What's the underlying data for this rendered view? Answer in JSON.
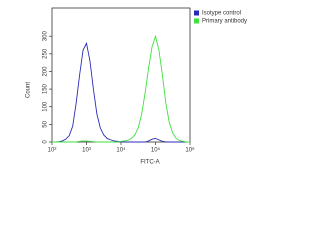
{
  "chart_data": {
    "type": "line",
    "x_label": "FITC-A",
    "y_label": "Count",
    "x": [
      100,
      126,
      158,
      200,
      251,
      316,
      398,
      501,
      631,
      794,
      1000,
      1259,
      1585,
      1995,
      2512,
      3162,
      3981,
      5012,
      6310,
      7943,
      10000,
      12589,
      15849,
      19953,
      25119,
      31623,
      39811,
      50119,
      63096,
      79433,
      100000,
      125893,
      158489,
      199526,
      251189,
      316228,
      398107,
      501187,
      630957,
      794328,
      1000000
    ],
    "series": [
      {
        "name": "Isotype control",
        "color": "#2b2bb8",
        "values": [
          0,
          0,
          1,
          3,
          8,
          18,
          45,
          110,
          190,
          260,
          280,
          230,
          150,
          80,
          40,
          20,
          10,
          6,
          3,
          2,
          1,
          0,
          0,
          0,
          0,
          0,
          0,
          0,
          3,
          8,
          10,
          6,
          2,
          0,
          0,
          0,
          0,
          0,
          0,
          0,
          0
        ]
      },
      {
        "name": "Primary antibody",
        "color": "#3ee03e",
        "values": [
          0,
          0,
          0,
          0,
          0,
          0,
          0,
          0,
          2,
          3,
          3,
          2,
          1,
          0,
          0,
          0,
          0,
          0,
          0,
          0,
          2,
          3,
          5,
          10,
          20,
          40,
          80,
          140,
          210,
          270,
          300,
          260,
          190,
          110,
          55,
          25,
          10,
          4,
          2,
          0,
          0
        ]
      }
    ],
    "xlog": true,
    "xlim": [
      100,
      1000000
    ],
    "xticks": [
      {
        "value": 100,
        "label": "10²"
      },
      {
        "value": 1000,
        "label": "10³"
      },
      {
        "value": 10000,
        "label": "10⁴"
      },
      {
        "value": 100000,
        "label": "10⁵"
      },
      {
        "value": 1000000,
        "label": "10⁶"
      }
    ],
    "ylim": [
      0,
      380
    ],
    "yticks": [
      0,
      50,
      100,
      150,
      200,
      250,
      300
    ],
    "legend": "right"
  }
}
